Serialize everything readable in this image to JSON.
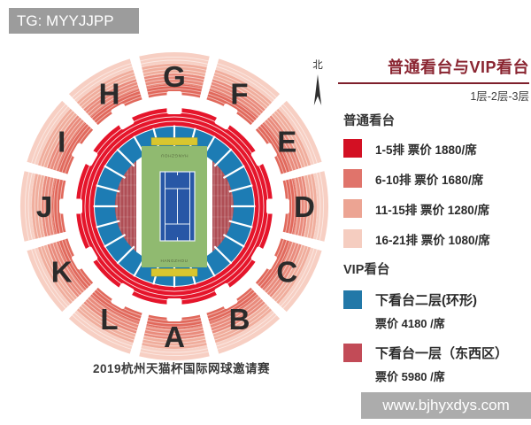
{
  "banners": {
    "tg": "TG: MYYJJPP",
    "website": "www.bjhyxdys.com"
  },
  "caption": "2019杭州天猫杯国际网球邀请赛",
  "north": {
    "label": "北"
  },
  "court": {
    "city_top": "HANGZHOU",
    "city_bottom": "HANGZHOU"
  },
  "stadium": {
    "sections": [
      "G",
      "F",
      "E",
      "D",
      "C",
      "B",
      "A",
      "L",
      "K",
      "J",
      "I",
      "H"
    ],
    "colors": {
      "wedge_bands": [
        "#e1695c",
        "#e98b7c",
        "#f0ad9c",
        "#f7cfc3"
      ],
      "red_ring": "#e5152b",
      "blue_ring": "#1d7cb4",
      "vip_lower": "#af4e55",
      "court_green": "#90ba70",
      "court_blue": "#2857a6",
      "court_line": "#e8f0f8",
      "bench_yellow": "#d9c62f",
      "letter_color": "#2b2b2b"
    }
  },
  "legend": {
    "title": "普通看台与VIP看台",
    "subtitle": "1层-2层-3层",
    "regular_header": "普通看台",
    "regular_items": [
      {
        "color": "#d31023",
        "label": "1-5排 票价 1880/席"
      },
      {
        "color": "#e0746b",
        "label": "6-10排 票价 1680/席"
      },
      {
        "color": "#eca493",
        "label": "11-15排 票价 1280/席"
      },
      {
        "color": "#f5cdc0",
        "label": "16-21排 票价 1080/席"
      }
    ],
    "vip_header": "VIP看台",
    "vip_items": [
      {
        "color": "#2278a8",
        "label": "下看台二层(环形)",
        "price": "票价 4180 /席"
      },
      {
        "color": "#c24b57",
        "label": "下看台一层（东西区）",
        "price": "票价 5980 /席"
      }
    ]
  }
}
